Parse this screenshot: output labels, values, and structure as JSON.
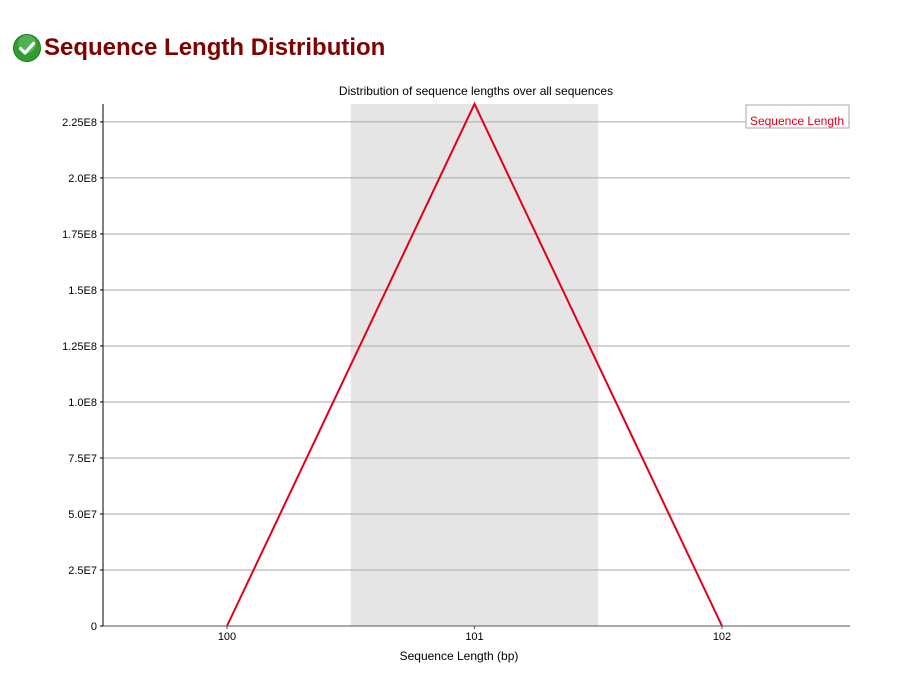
{
  "header": {
    "title": "Sequence Length Distribution",
    "status_icon": "pass-check-icon",
    "status_color": "#2e9e2e"
  },
  "chart_data": {
    "type": "line",
    "title": "Distribution of sequence lengths over all sequences",
    "xlabel": "Sequence Length (bp)",
    "ylabel": "",
    "categories": [
      "100",
      "101",
      "102"
    ],
    "series": [
      {
        "name": "Sequence Length",
        "color": "#e0001b",
        "values": [
          0,
          233000000,
          0
        ]
      }
    ],
    "ylim": [
      0,
      233000000
    ],
    "yticks": [
      0,
      25000000,
      50000000,
      75000000,
      100000000,
      125000000,
      150000000,
      175000000,
      200000000,
      225000000
    ],
    "ytick_labels": [
      "0",
      "2.5E7",
      "5.0E7",
      "7.5E7",
      "1.0E8",
      "1.25E8",
      "1.5E8",
      "1.75E8",
      "2.0E8",
      "2.25E8"
    ],
    "grid": true,
    "highlight_band_category": "101",
    "band_color": "#e5e5e5",
    "grid_color": "#aaaaaa",
    "legend_position": "top-right"
  }
}
